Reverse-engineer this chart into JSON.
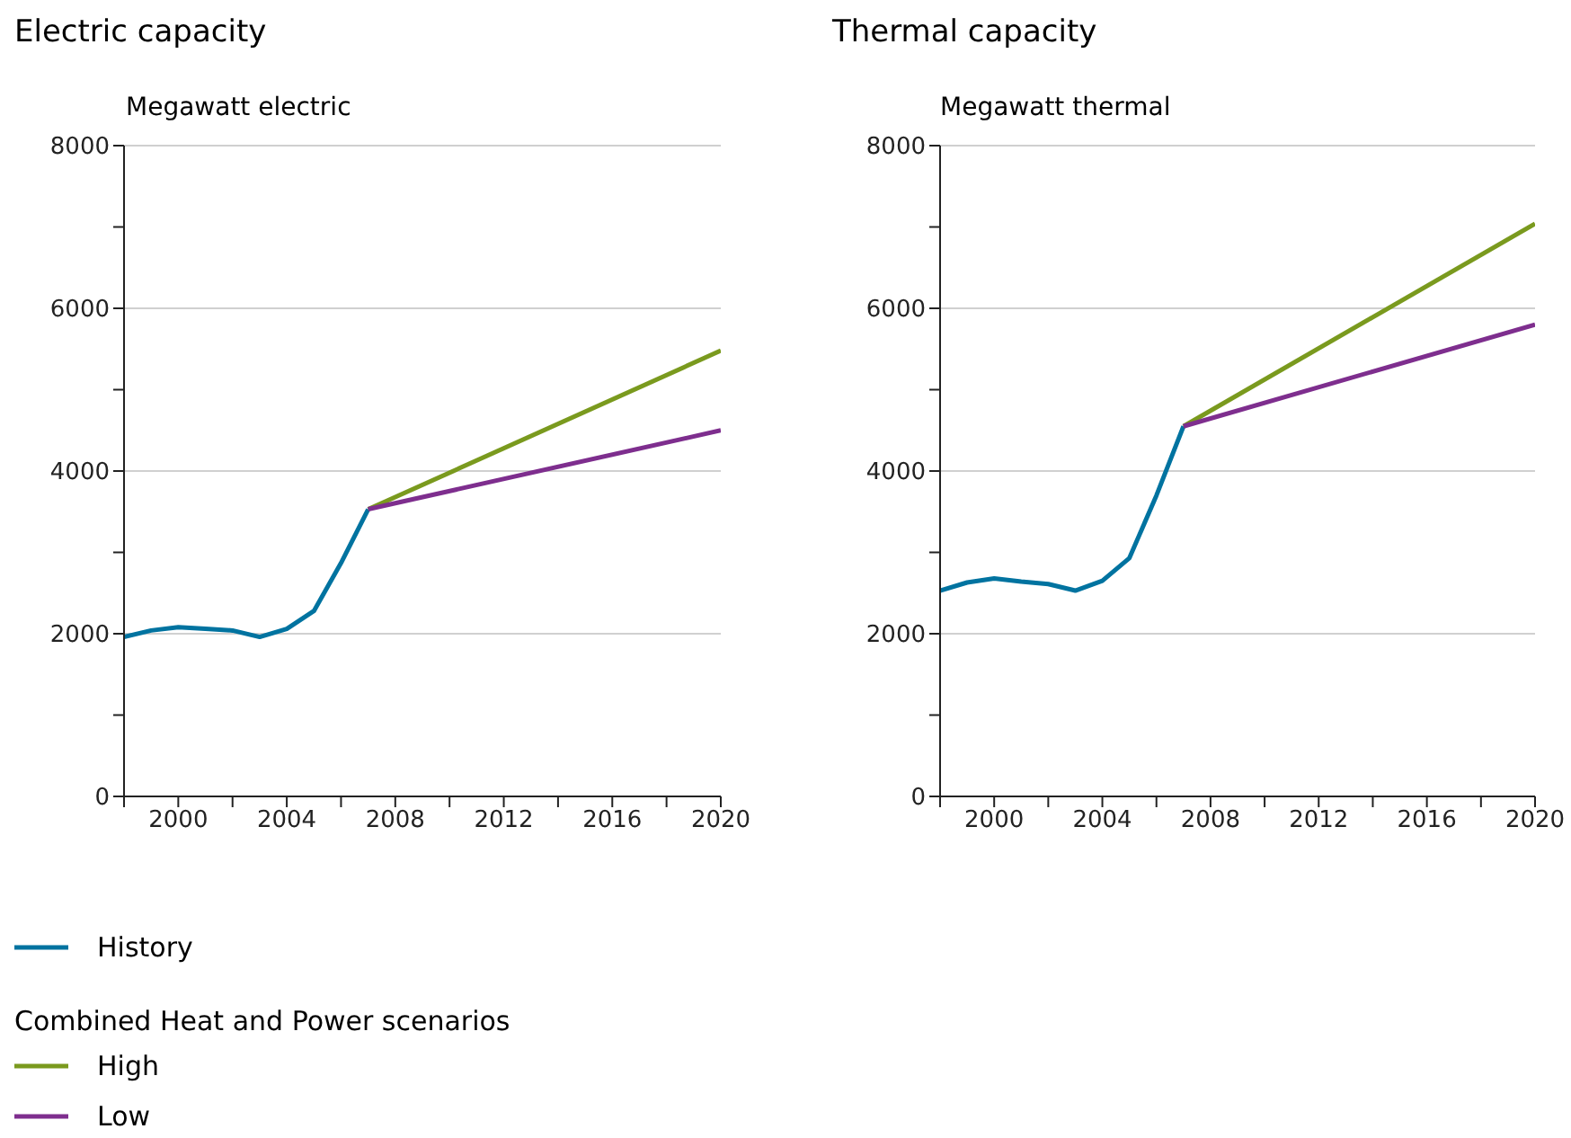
{
  "chart_data": [
    {
      "type": "line",
      "title": "Electric capacity",
      "ylabel": "Megawatt electric",
      "xlim": [
        1998,
        2020
      ],
      "ylim": [
        0,
        8000
      ],
      "xticks": [
        {
          "value": 1998,
          "label": null
        },
        2000,
        {
          "value": 2002,
          "label": null
        },
        2004,
        {
          "value": 2006,
          "label": null
        },
        2008,
        {
          "value": 2010,
          "label": null
        },
        2012,
        {
          "value": 2014,
          "label": null
        },
        2016,
        {
          "value": 2018,
          "label": null
        },
        2020
      ],
      "yticks": [
        0,
        {
          "value": 1000,
          "label": null
        },
        2000,
        {
          "value": 3000,
          "label": null
        },
        4000,
        {
          "value": 5000,
          "label": null
        },
        6000,
        {
          "value": 7000,
          "label": null
        },
        8000
      ],
      "grid": "y",
      "legend": "bottom",
      "legend_title": "Combined Heat and Power scenarios",
      "marker": "none",
      "line_style": "solid",
      "series": [
        {
          "name": "History",
          "color": "#0073a0",
          "x": [
            1998,
            1999,
            2000,
            2001,
            2002,
            2003,
            2004,
            2005,
            2006,
            2007
          ],
          "values": [
            1960,
            2040,
            2080,
            2060,
            2040,
            1960,
            2060,
            2280,
            2870,
            3530
          ]
        },
        {
          "name": "High",
          "color": "#7a9a1e",
          "x": [
            2007,
            2020
          ],
          "values": [
            3530,
            5480
          ]
        },
        {
          "name": "Low",
          "color": "#7e2e8e",
          "x": [
            2007,
            2020
          ],
          "values": [
            3530,
            4500
          ]
        }
      ]
    },
    {
      "type": "line",
      "title": "Thermal capacity",
      "ylabel": "Megawatt thermal",
      "xlim": [
        1998,
        2020
      ],
      "ylim": [
        0,
        8000
      ],
      "xticks": [
        {
          "value": 1998,
          "label": null
        },
        2000,
        {
          "value": 2002,
          "label": null
        },
        2004,
        {
          "value": 2006,
          "label": null
        },
        2008,
        {
          "value": 2010,
          "label": null
        },
        2012,
        {
          "value": 2014,
          "label": null
        },
        2016,
        {
          "value": 2018,
          "label": null
        },
        2020
      ],
      "yticks": [
        0,
        {
          "value": 1000,
          "label": null
        },
        2000,
        {
          "value": 3000,
          "label": null
        },
        4000,
        {
          "value": 5000,
          "label": null
        },
        6000,
        {
          "value": 7000,
          "label": null
        },
        8000
      ],
      "grid": "y",
      "marker": "none",
      "line_style": "solid",
      "series": [
        {
          "color": "#0073a0",
          "x": [
            1998,
            1999,
            2000,
            2001,
            2002,
            2003,
            2004,
            2005,
            2006,
            2007
          ],
          "values": [
            2530,
            2630,
            2680,
            2640,
            2610,
            2530,
            2650,
            2930,
            3700,
            4550
          ]
        },
        {
          "color": "#7a9a1e",
          "x": [
            2007,
            2020
          ],
          "values": [
            4550,
            7040
          ]
        },
        {
          "color": "#7e2e8e",
          "x": [
            2007,
            2020
          ],
          "values": [
            4550,
            5800
          ]
        }
      ]
    }
  ]
}
